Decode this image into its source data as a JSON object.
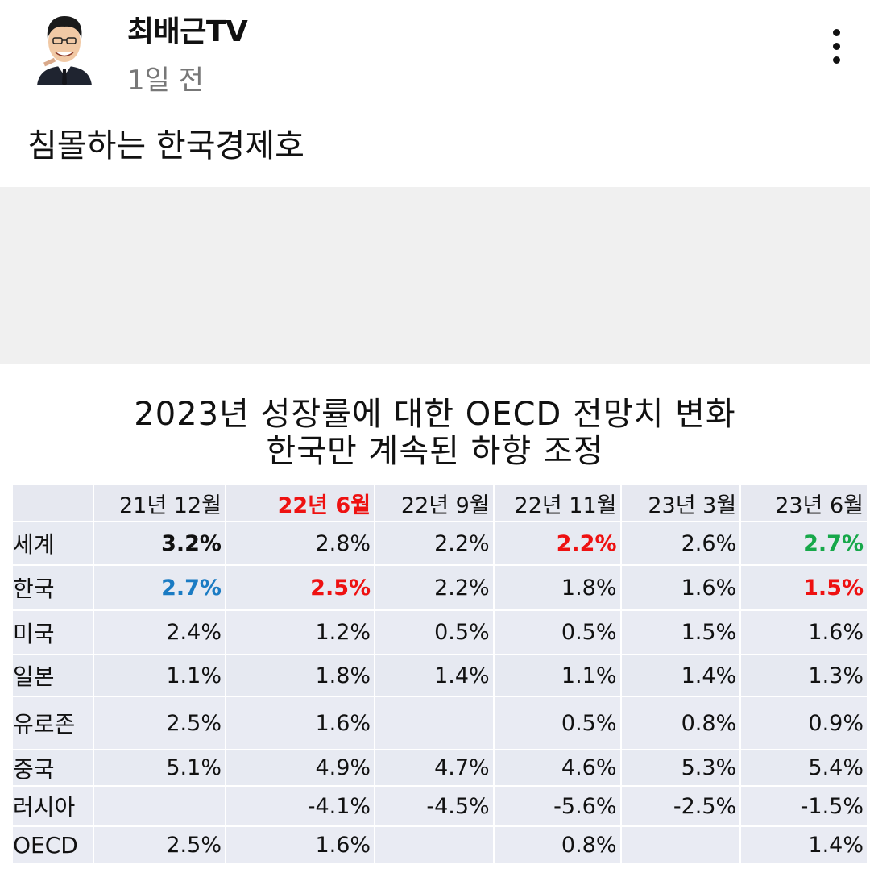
{
  "post": {
    "channel_name": "최배근TV",
    "time_ago": "1일 전",
    "text": "침몰하는 한국경제호"
  },
  "image": {
    "title_line1": "2023년 성장률에 대한 OECD 전망치 변화",
    "title_line2": "한국만 계속된 하향 조정",
    "table": {
      "columns": [
        "21년 12월",
        "22년 6월",
        "22년 9월",
        "22년 11월",
        "23년 3월",
        "23년 6월"
      ],
      "rows": [
        {
          "label": "세계",
          "values": [
            "3.2%",
            "2.8%",
            "2.2%",
            "2.2%",
            "2.6%",
            "2.7%"
          ]
        },
        {
          "label": "한국",
          "values": [
            "2.7%",
            "2.5%",
            "2.2%",
            "1.8%",
            "1.6%",
            "1.5%"
          ]
        },
        {
          "label": "미국",
          "values": [
            "2.4%",
            "1.2%",
            "0.5%",
            "0.5%",
            "1.5%",
            "1.6%"
          ]
        },
        {
          "label": "일본",
          "values": [
            "1.1%",
            "1.8%",
            "1.4%",
            "1.1%",
            "1.4%",
            "1.3%"
          ]
        },
        {
          "label": "유로존",
          "values": [
            "2.5%",
            "1.6%",
            "",
            "0.5%",
            "0.8%",
            "0.9%"
          ]
        },
        {
          "label": "중국",
          "values": [
            "5.1%",
            "4.9%",
            "4.7%",
            "4.6%",
            "5.3%",
            "5.4%"
          ]
        },
        {
          "label": "러시아",
          "values": [
            "",
            "-4.1%",
            "-4.5%",
            "-5.6%",
            "-2.5%",
            "-1.5%"
          ]
        },
        {
          "label": "OECD",
          "values": [
            "2.5%",
            "1.6%",
            "",
            "0.8%",
            "",
            "1.4%"
          ]
        }
      ]
    }
  },
  "colors": {
    "highlight_red": "#ee1111",
    "highlight_blue": "#1a7bc3",
    "highlight_green": "#17a84a",
    "table_bg": "#e7eaf2",
    "band_gray": "#f0f0f0"
  },
  "icons": {
    "more": "vertical-dots-icon",
    "avatar": "caricature-avatar"
  }
}
